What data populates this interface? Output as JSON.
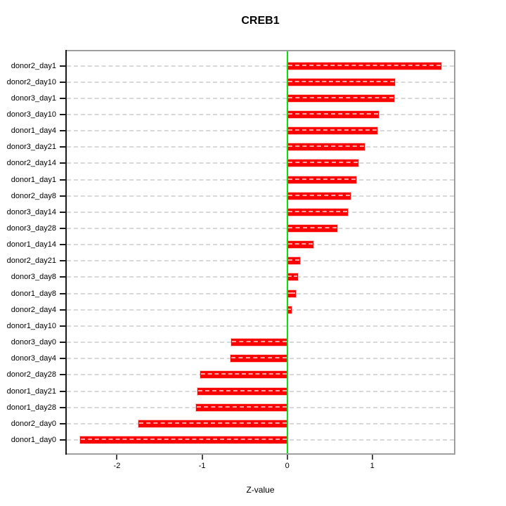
{
  "title": "CREB1",
  "chart_data": {
    "type": "bar",
    "orientation": "horizontal",
    "title": "CREB1",
    "xlabel": "Z-value",
    "ylabel": "",
    "categories": [
      "donor2_day1",
      "donor2_day10",
      "donor3_day1",
      "donor3_day10",
      "donor1_day4",
      "donor3_day21",
      "donor2_day14",
      "donor1_day1",
      "donor2_day8",
      "donor3_day14",
      "donor3_day28",
      "donor1_day14",
      "donor2_day21",
      "donor3_day8",
      "donor1_day8",
      "donor2_day4",
      "donor1_day10",
      "donor3_day0",
      "donor3_day4",
      "donor2_day28",
      "donor1_day21",
      "donor1_day28",
      "donor2_day0",
      "donor1_day0"
    ],
    "values": [
      1.81,
      1.27,
      1.26,
      1.08,
      1.06,
      0.91,
      0.84,
      0.81,
      0.75,
      0.71,
      0.59,
      0.31,
      0.15,
      0.13,
      0.1,
      0.05,
      0.0,
      -0.66,
      -0.67,
      -1.02,
      -1.05,
      -1.07,
      -1.75,
      -2.43
    ],
    "xlim": [
      -2.59,
      1.96
    ],
    "xticks": [
      -2,
      -1,
      0,
      1
    ],
    "grid": "horizontal dashed line per category",
    "legend": "none",
    "zero_reference_line": 0,
    "colors": {
      "bar": "#fb0000",
      "zero_line": "#0ddd0d",
      "grid_line": "#d8d8d8",
      "box_border": "#9e9e9e",
      "axis_line": "#1a1a1a",
      "text": "#000000",
      "background": "#ffffff"
    }
  }
}
